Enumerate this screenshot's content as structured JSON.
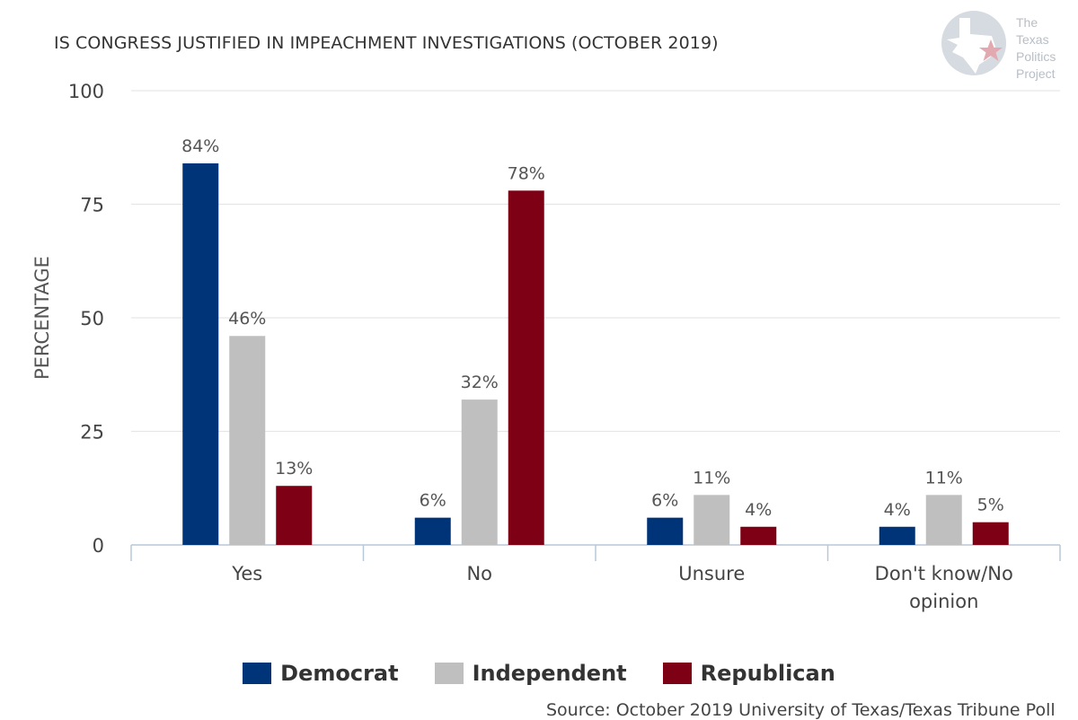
{
  "chart_data": {
    "type": "bar",
    "title": "IS CONGRESS JUSTIFIED IN IMPEACHMENT INVESTIGATIONS (OCTOBER 2019)",
    "xlabel": "",
    "ylabel": "PERCENTAGE",
    "ylim": [
      0,
      100
    ],
    "yticks": [
      0,
      25,
      50,
      75,
      100
    ],
    "grid": true,
    "legend_position": "bottom",
    "categories": [
      [
        "Yes"
      ],
      [
        "No"
      ],
      [
        "Unsure"
      ],
      [
        "Don't know/No",
        "opinion"
      ]
    ],
    "series": [
      {
        "name": "Democrat",
        "color": "#003478",
        "values": [
          84,
          6,
          6,
          4
        ],
        "labels": [
          "84%",
          "6%",
          "6%",
          "4%"
        ]
      },
      {
        "name": "Independent",
        "color": "#bfbfbf",
        "values": [
          46,
          32,
          11,
          11
        ],
        "labels": [
          "46%",
          "32%",
          "11%",
          "11%"
        ]
      },
      {
        "name": "Republican",
        "color": "#7e0014",
        "values": [
          13,
          78,
          4,
          5
        ],
        "labels": [
          "13%",
          "78%",
          "4%",
          "5%"
        ]
      }
    ]
  },
  "logo": {
    "lines": [
      "The",
      "Texas",
      "Politics",
      "Project"
    ]
  },
  "source": "Source: October 2019 University of Texas/Texas Tribune Poll"
}
